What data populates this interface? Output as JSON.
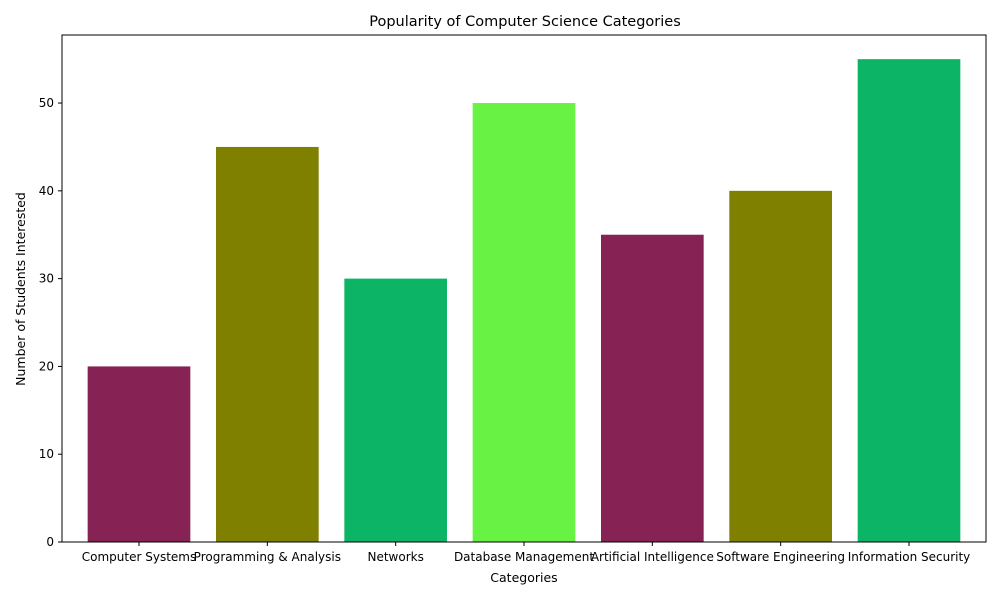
{
  "chart_data": {
    "type": "bar",
    "title": "Popularity of Computer Science Categories",
    "xlabel": "Categories",
    "ylabel": "Number of Students Interested",
    "categories": [
      "Computer Systems",
      "Programming & Analysis",
      "Networks",
      "Database Management",
      "Artificial Intelligence",
      "Software Engineering",
      "Information Security"
    ],
    "values": [
      20,
      45,
      30,
      50,
      35,
      40,
      55
    ],
    "colors": [
      "#862254",
      "#808000",
      "#0cb566",
      "#68f244",
      "#862254",
      "#808000",
      "#0cb566"
    ],
    "ylim": [
      0,
      57.75
    ],
    "yticks": [
      0,
      10,
      20,
      30,
      40,
      50
    ],
    "grid": false,
    "legend": "none"
  }
}
